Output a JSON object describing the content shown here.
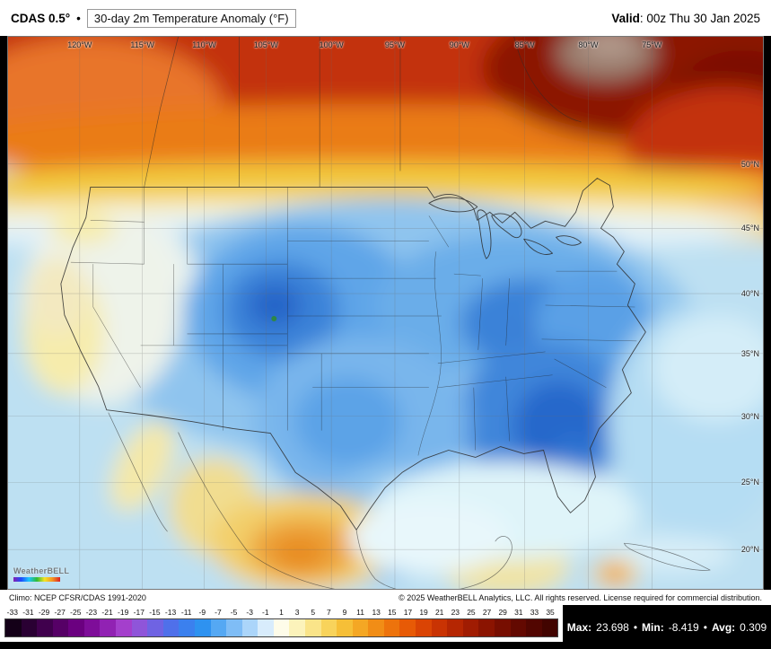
{
  "header": {
    "model": "CDAS 0.5°",
    "bullet": "•",
    "title": "30-day 2m Temperature Anomaly (°F)",
    "valid_label": "Valid",
    "valid_rest": ": 00z Thu 30 Jan 2025"
  },
  "map": {
    "lon_labels": [
      "120°W",
      "115°W",
      "110°W",
      "105°W",
      "100°W",
      "95°W",
      "90°W",
      "85°W",
      "80°W",
      "75°W"
    ],
    "lat_labels": [
      "50°N",
      "45°N",
      "40°N",
      "35°N",
      "30°N",
      "25°N",
      "20°N"
    ],
    "watermark_text": "WeatherBELL"
  },
  "footer": {
    "climo": "Climo: NCEP CFSR/CDAS 1991-2020",
    "copyright": "© 2025 WeatherBELL Analytics, LLC. All rights reserved. License required for commercial distribution."
  },
  "colorbar": {
    "ticks": [
      "-33",
      "-31",
      "-29",
      "-27",
      "-25",
      "-23",
      "-21",
      "-19",
      "-17",
      "-15",
      "-13",
      "-11",
      "-9",
      "-7",
      "-5",
      "-3",
      "-1",
      "1",
      "3",
      "5",
      "7",
      "9",
      "11",
      "13",
      "15",
      "17",
      "19",
      "21",
      "23",
      "25",
      "27",
      "29",
      "31",
      "33",
      "35"
    ],
    "colors": [
      "#140018",
      "#2a0033",
      "#40004d",
      "#560066",
      "#6b0080",
      "#7e0d99",
      "#9122b3",
      "#a43fcc",
      "#8f55d9",
      "#6f63e3",
      "#4f70ea",
      "#3b80ee",
      "#2e92f0",
      "#55a8f3",
      "#7fbdf6",
      "#abd5fa",
      "#d8ecfc",
      "#fefce9",
      "#fcf3bb",
      "#fae489",
      "#f8d35b",
      "#f6bf37",
      "#f4a724",
      "#f18d16",
      "#ed730c",
      "#e75a06",
      "#da4404",
      "#c93303",
      "#b52602",
      "#a01c02",
      "#8b1401",
      "#770e01",
      "#630901",
      "#520601",
      "#420400"
    ]
  },
  "stats": {
    "max_label": "Max:",
    "max_value": "23.698",
    "min_label": "Min:",
    "min_value": "-8.419",
    "avg_label": "Avg:",
    "avg_value": "0.309",
    "sep": "•"
  }
}
